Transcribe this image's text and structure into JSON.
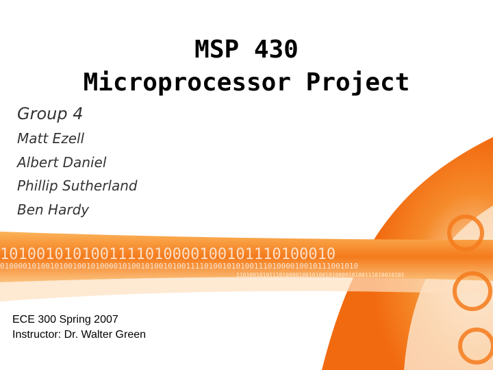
{
  "slide": {
    "title": [
      "MSP 430",
      "Microprocessor Project"
    ],
    "subtitle": "Group 4",
    "members": [
      "Matt Ezell",
      "Albert Daniel",
      "Phillip Sutherland",
      "Ben Hardy"
    ],
    "footer": [
      "ECE 300 Spring 2007",
      "Instructor: Dr. Walter Green"
    ],
    "binary": [
      "1010010101001111010000100101110100010",
      "0100001010010100100101000010100101001010011110100101010011101000010010111001010",
      "110100101011101000010010100101000010100111010010101"
    ]
  }
}
